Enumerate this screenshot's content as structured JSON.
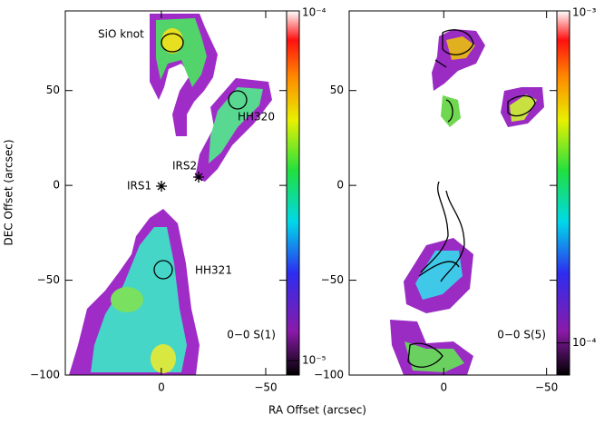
{
  "chart_data": [
    {
      "type": "image",
      "xlabel": "RA Offset (arcsec)",
      "ylabel": "DEC Offset (arcsec)",
      "xlim": [
        46,
        -60
      ],
      "ylim": [
        -100,
        92
      ],
      "xticks": [
        0,
        {
          "value": -50,
          "label": "−50"
        }
      ],
      "yticks": [
        50,
        0,
        {
          "value": -50,
          "label": "−50"
        },
        {
          "value": -100,
          "label": "−100"
        }
      ],
      "colorbar": {
        "log": true,
        "lim": [
          9.1e-06,
          0.0001
        ],
        "ticks": [
          {
            "value": 1e-05,
            "label": "10⁻⁵"
          },
          {
            "value": 0.0001,
            "label": "10⁻⁴"
          }
        ]
      },
      "label": "0−0 S(1)",
      "annotations": [
        "SiO knot",
        "HH320",
        "IRS2",
        "IRS1",
        "HH321"
      ]
    },
    {
      "type": "image",
      "xlim": [
        46,
        -55
      ],
      "ylim": [
        -100,
        92
      ],
      "xticks": [
        0,
        {
          "value": -50,
          "label": "−50"
        }
      ],
      "yticks": [
        50,
        0,
        {
          "value": -50,
          "label": "−50"
        },
        {
          "value": -100,
          "label": "−100"
        }
      ],
      "colorbar": {
        "log": true,
        "lim": [
          8e-05,
          0.001
        ],
        "ticks": [
          {
            "value": 0.0001,
            "label": "10⁻⁴"
          },
          {
            "value": 0.001,
            "label": "10⁻³"
          }
        ]
      },
      "label": "0−0 S(5)"
    }
  ]
}
